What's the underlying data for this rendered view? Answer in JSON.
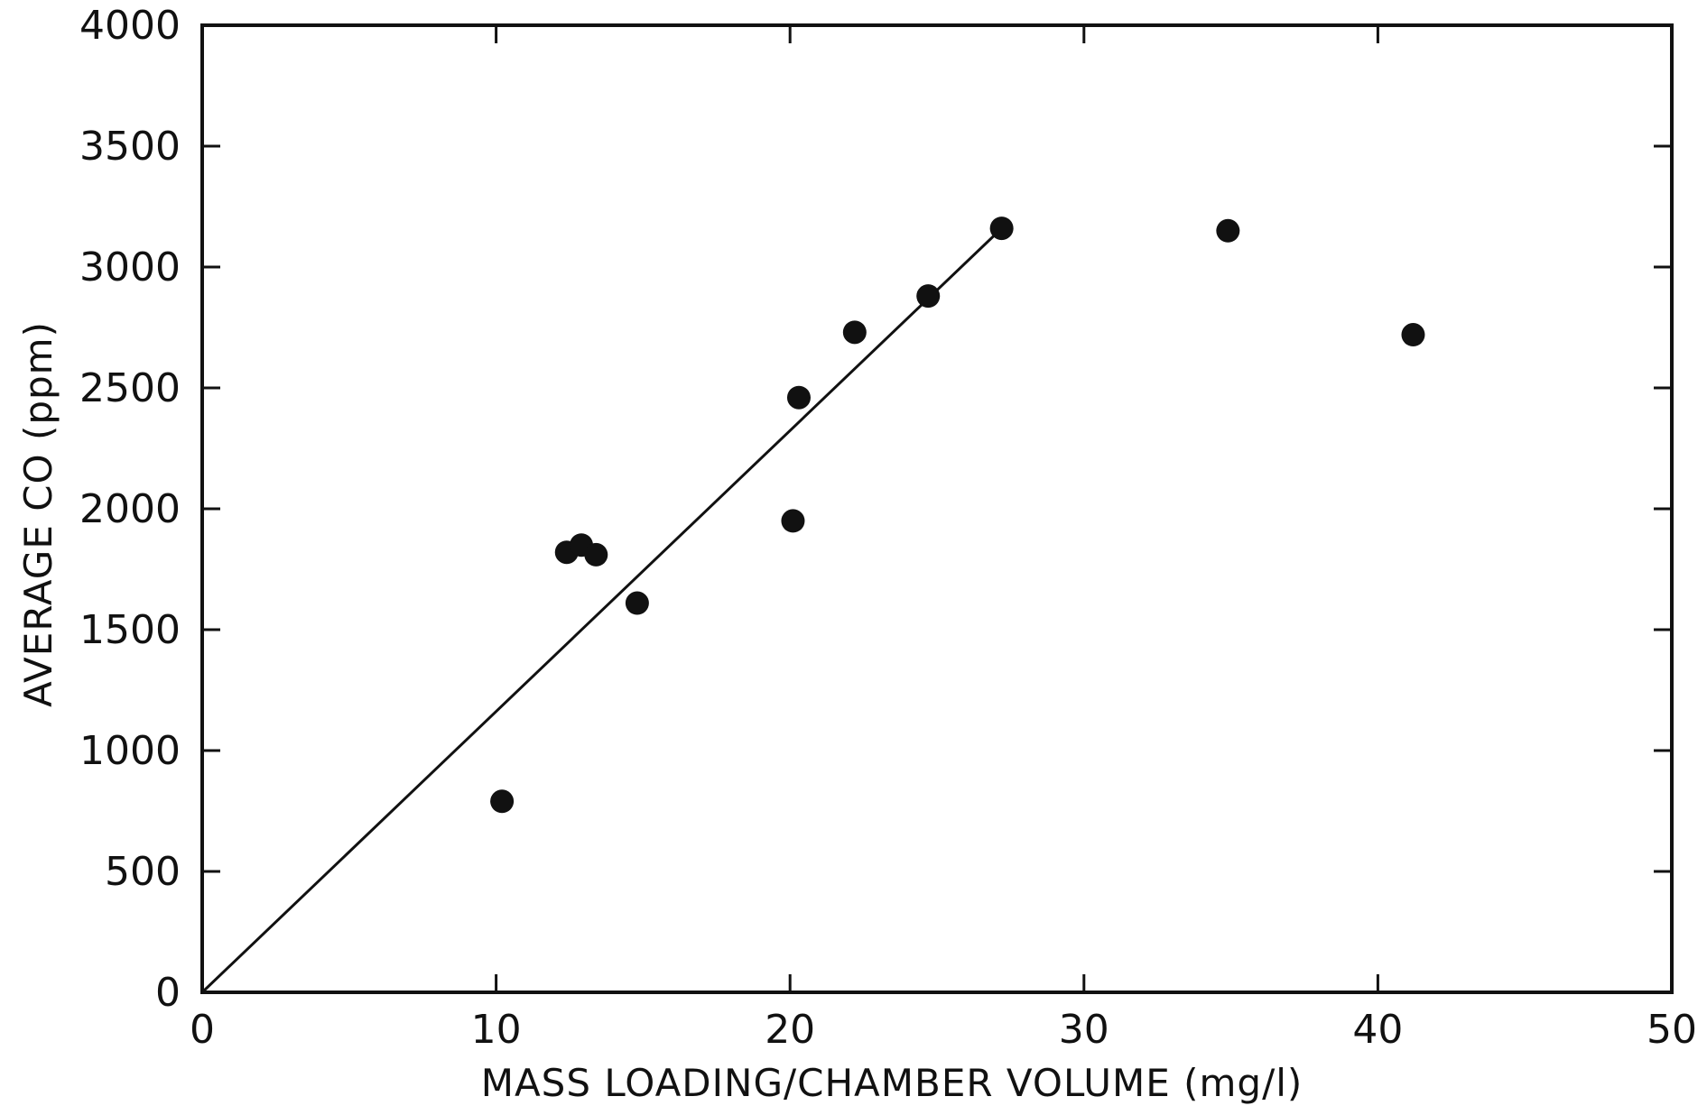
{
  "chart_data": {
    "type": "scatter",
    "title": "",
    "xlabel": "MASS LOADING/CHAMBER VOLUME (mg/l)",
    "ylabel": "AVERAGE CO (ppm)",
    "xlim": [
      0,
      50
    ],
    "ylim": [
      0,
      4000
    ],
    "xticks": [
      "0",
      "10",
      "20",
      "30",
      "40",
      "50"
    ],
    "yticks": [
      "0",
      "500",
      "1000",
      "1500",
      "2000",
      "2500",
      "3000",
      "3500",
      "4000"
    ],
    "grid": false,
    "legend": "none",
    "series": [
      {
        "type": "scatter",
        "points": [
          {
            "x": 10.2,
            "y": 790
          },
          {
            "x": 12.4,
            "y": 1820
          },
          {
            "x": 12.9,
            "y": 1850
          },
          {
            "x": 13.4,
            "y": 1810
          },
          {
            "x": 14.8,
            "y": 1610
          },
          {
            "x": 20.1,
            "y": 1950
          },
          {
            "x": 20.3,
            "y": 2460
          },
          {
            "x": 22.2,
            "y": 2730
          },
          {
            "x": 24.7,
            "y": 2880
          },
          {
            "x": 27.2,
            "y": 3160
          },
          {
            "x": 34.9,
            "y": 3150
          },
          {
            "x": 41.2,
            "y": 2720
          }
        ]
      },
      {
        "type": "line",
        "points": [
          {
            "x": 0,
            "y": 0
          },
          {
            "x": 27.2,
            "y": 3160
          }
        ]
      }
    ],
    "colors": {
      "marker": "#111111",
      "line": "#111111",
      "axes": "#111111"
    }
  }
}
